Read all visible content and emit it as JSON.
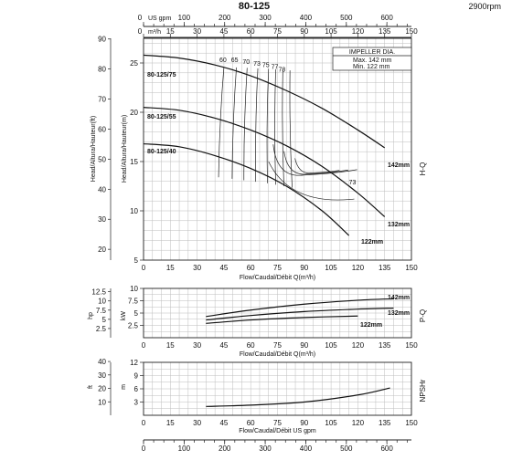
{
  "header": {
    "title": "80-125",
    "speed": "2900rpm"
  },
  "chart_data": [
    {
      "type": "line",
      "panel": "H-Q",
      "side_label": "H-Q",
      "x": {
        "units_label": "m³/h",
        "range": [
          0,
          150
        ],
        "ticks": [
          0,
          15,
          30,
          45,
          60,
          75,
          90,
          105,
          120,
          135,
          150
        ]
      },
      "x_top_usgpm": {
        "units_label": "US gpm",
        "ticks": [
          0,
          100,
          200,
          300,
          400,
          500,
          600
        ]
      },
      "y_m": {
        "label": "Head/Altura/Hauteur(m)",
        "range": [
          5,
          27.5
        ],
        "ticks": [
          5,
          10,
          15,
          20,
          25
        ]
      },
      "y_ft": {
        "label": "Head/Altura/Hauteur(ft)",
        "ticks": [
          20,
          30,
          40,
          50,
          60,
          70,
          80,
          90
        ]
      },
      "xlabel": "Flow/Caudal/Débit Q(m³/h)",
      "legend": {
        "title": "IMPELLER DIA.",
        "max": "Max.  142 mm",
        "min": "Min.  122 mm"
      },
      "series": [
        {
          "name": "80-125/75",
          "end_label": "142mm",
          "x": [
            0,
            20,
            40,
            60,
            80,
            100,
            120,
            135
          ],
          "y": [
            25.8,
            25.5,
            24.8,
            23.7,
            22.2,
            20.4,
            18.2,
            16.4
          ]
        },
        {
          "name": "80-125/55",
          "end_label": "132mm",
          "x": [
            0,
            20,
            40,
            60,
            80,
            100,
            120,
            135
          ],
          "y": [
            20.5,
            20.2,
            19.4,
            18.2,
            16.6,
            14.5,
            11.8,
            9.4
          ]
        },
        {
          "name": "80-125/40",
          "end_label": "122mm",
          "x": [
            0,
            20,
            40,
            60,
            80,
            100,
            115
          ],
          "y": [
            16.8,
            16.5,
            15.6,
            14.3,
            12.5,
            10.0,
            7.5
          ]
        }
      ],
      "efficiency_labels": [
        "60",
        "65",
        "70",
        "73",
        "75",
        "77",
        "78",
        "73"
      ]
    },
    {
      "type": "line",
      "panel": "P-Q",
      "side_label": "P-Q",
      "y_kw": {
        "label": "kW",
        "ticks": [
          2.5,
          5,
          7.5,
          10
        ]
      },
      "y_hp": {
        "label": "hp",
        "ticks": [
          2.5,
          5,
          7.5,
          10,
          12.5
        ]
      },
      "xlabel": "Flow/Caudal/Débit Q(m³/h)",
      "series": [
        {
          "end_label": "142mm",
          "x": [
            35,
            60,
            90,
            120,
            140
          ],
          "y": [
            4.3,
            5.6,
            6.8,
            7.6,
            7.9
          ]
        },
        {
          "end_label": "132mm",
          "x": [
            35,
            60,
            90,
            120,
            140
          ],
          "y": [
            3.6,
            4.5,
            5.3,
            5.8,
            6.0
          ]
        },
        {
          "end_label": "122mm",
          "x": [
            35,
            60,
            90,
            120
          ],
          "y": [
            2.9,
            3.6,
            4.1,
            4.4
          ]
        }
      ]
    },
    {
      "type": "line",
      "panel": "NPSHr",
      "side_label": "NPSHr",
      "y_m": {
        "label": "m",
        "ticks": [
          3,
          6,
          9,
          12
        ]
      },
      "y_ft": {
        "label": "ft",
        "ticks": [
          10,
          20,
          30,
          40
        ]
      },
      "xlabel": "Flow/Caudal/Débit  US gpm",
      "series": [
        {
          "x": [
            35,
            60,
            90,
            120,
            138
          ],
          "y": [
            2.0,
            2.3,
            3.0,
            4.6,
            6.2
          ]
        }
      ]
    }
  ]
}
